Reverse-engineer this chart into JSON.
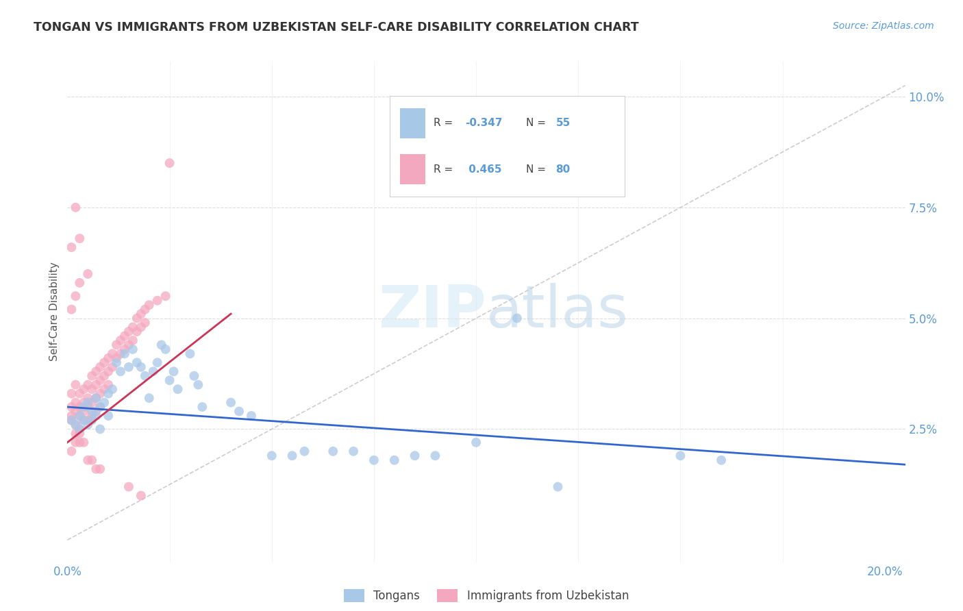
{
  "title": "TONGAN VS IMMIGRANTS FROM UZBEKISTAN SELF-CARE DISABILITY CORRELATION CHART",
  "source": "Source: ZipAtlas.com",
  "ylabel": "Self-Care Disability",
  "xlim": [
    0.0,
    0.205
  ],
  "ylim": [
    -0.005,
    0.108
  ],
  "diagonal_line": {
    "x": [
      0.0,
      0.205
    ],
    "y": [
      0.0,
      0.1025
    ],
    "color": "#c8c8c8",
    "linestyle": "dashed"
  },
  "watermark": "ZIPatlas",
  "tongans_color": "#a8c8e8",
  "uzbekistan_color": "#f4a8c0",
  "tongans_line_color": "#3366cc",
  "uzbekistan_line_color": "#cc3355",
  "tongans_data": [
    [
      0.001,
      0.027
    ],
    [
      0.002,
      0.026
    ],
    [
      0.003,
      0.028
    ],
    [
      0.003,
      0.025
    ],
    [
      0.004,
      0.027
    ],
    [
      0.004,
      0.03
    ],
    [
      0.005,
      0.031
    ],
    [
      0.005,
      0.026
    ],
    [
      0.006,
      0.027
    ],
    [
      0.006,
      0.029
    ],
    [
      0.007,
      0.032
    ],
    [
      0.007,
      0.028
    ],
    [
      0.008,
      0.025
    ],
    [
      0.008,
      0.03
    ],
    [
      0.009,
      0.031
    ],
    [
      0.01,
      0.028
    ],
    [
      0.01,
      0.033
    ],
    [
      0.011,
      0.034
    ],
    [
      0.012,
      0.04
    ],
    [
      0.013,
      0.038
    ],
    [
      0.014,
      0.042
    ],
    [
      0.015,
      0.039
    ],
    [
      0.016,
      0.043
    ],
    [
      0.017,
      0.04
    ],
    [
      0.018,
      0.039
    ],
    [
      0.019,
      0.037
    ],
    [
      0.02,
      0.032
    ],
    [
      0.021,
      0.038
    ],
    [
      0.022,
      0.04
    ],
    [
      0.023,
      0.044
    ],
    [
      0.024,
      0.043
    ],
    [
      0.025,
      0.036
    ],
    [
      0.026,
      0.038
    ],
    [
      0.027,
      0.034
    ],
    [
      0.03,
      0.042
    ],
    [
      0.031,
      0.037
    ],
    [
      0.032,
      0.035
    ],
    [
      0.033,
      0.03
    ],
    [
      0.04,
      0.031
    ],
    [
      0.042,
      0.029
    ],
    [
      0.045,
      0.028
    ],
    [
      0.05,
      0.019
    ],
    [
      0.055,
      0.019
    ],
    [
      0.058,
      0.02
    ],
    [
      0.065,
      0.02
    ],
    [
      0.07,
      0.02
    ],
    [
      0.075,
      0.018
    ],
    [
      0.08,
      0.018
    ],
    [
      0.085,
      0.019
    ],
    [
      0.09,
      0.019
    ],
    [
      0.1,
      0.022
    ],
    [
      0.11,
      0.05
    ],
    [
      0.12,
      0.012
    ],
    [
      0.15,
      0.019
    ],
    [
      0.16,
      0.018
    ]
  ],
  "uzbekistan_data": [
    [
      0.001,
      0.03
    ],
    [
      0.001,
      0.033
    ],
    [
      0.001,
      0.028
    ],
    [
      0.001,
      0.027
    ],
    [
      0.002,
      0.031
    ],
    [
      0.002,
      0.035
    ],
    [
      0.002,
      0.029
    ],
    [
      0.002,
      0.026
    ],
    [
      0.003,
      0.033
    ],
    [
      0.003,
      0.03
    ],
    [
      0.003,
      0.028
    ],
    [
      0.003,
      0.025
    ],
    [
      0.004,
      0.034
    ],
    [
      0.004,
      0.031
    ],
    [
      0.004,
      0.029
    ],
    [
      0.004,
      0.027
    ],
    [
      0.005,
      0.035
    ],
    [
      0.005,
      0.032
    ],
    [
      0.005,
      0.03
    ],
    [
      0.005,
      0.027
    ],
    [
      0.006,
      0.037
    ],
    [
      0.006,
      0.034
    ],
    [
      0.006,
      0.031
    ],
    [
      0.006,
      0.028
    ],
    [
      0.007,
      0.038
    ],
    [
      0.007,
      0.035
    ],
    [
      0.007,
      0.032
    ],
    [
      0.007,
      0.029
    ],
    [
      0.008,
      0.039
    ],
    [
      0.008,
      0.036
    ],
    [
      0.008,
      0.033
    ],
    [
      0.008,
      0.03
    ],
    [
      0.009,
      0.04
    ],
    [
      0.009,
      0.037
    ],
    [
      0.009,
      0.034
    ],
    [
      0.01,
      0.041
    ],
    [
      0.01,
      0.038
    ],
    [
      0.01,
      0.035
    ],
    [
      0.011,
      0.042
    ],
    [
      0.011,
      0.039
    ],
    [
      0.012,
      0.044
    ],
    [
      0.012,
      0.041
    ],
    [
      0.013,
      0.045
    ],
    [
      0.013,
      0.042
    ],
    [
      0.014,
      0.046
    ],
    [
      0.014,
      0.043
    ],
    [
      0.015,
      0.047
    ],
    [
      0.015,
      0.044
    ],
    [
      0.016,
      0.048
    ],
    [
      0.016,
      0.045
    ],
    [
      0.017,
      0.05
    ],
    [
      0.017,
      0.047
    ],
    [
      0.018,
      0.051
    ],
    [
      0.018,
      0.048
    ],
    [
      0.019,
      0.052
    ],
    [
      0.019,
      0.049
    ],
    [
      0.02,
      0.053
    ],
    [
      0.022,
      0.054
    ],
    [
      0.024,
      0.055
    ],
    [
      0.025,
      0.085
    ],
    [
      0.001,
      0.066
    ],
    [
      0.002,
      0.075
    ],
    [
      0.003,
      0.068
    ],
    [
      0.001,
      0.052
    ],
    [
      0.002,
      0.055
    ],
    [
      0.003,
      0.058
    ],
    [
      0.005,
      0.06
    ],
    [
      0.001,
      0.02
    ],
    [
      0.002,
      0.022
    ],
    [
      0.003,
      0.022
    ],
    [
      0.004,
      0.022
    ],
    [
      0.005,
      0.018
    ],
    [
      0.006,
      0.018
    ],
    [
      0.007,
      0.016
    ],
    [
      0.008,
      0.016
    ],
    [
      0.002,
      0.024
    ],
    [
      0.003,
      0.024
    ],
    [
      0.015,
      0.012
    ],
    [
      0.018,
      0.01
    ]
  ],
  "tongans_line_x": [
    0.0,
    0.205
  ],
  "tongans_line_y_start": 0.03,
  "tongans_line_y_end": 0.017,
  "uzbekistan_line_x": [
    0.0,
    0.04
  ],
  "uzbekistan_line_y_start": 0.022,
  "uzbekistan_line_y_end": 0.051
}
